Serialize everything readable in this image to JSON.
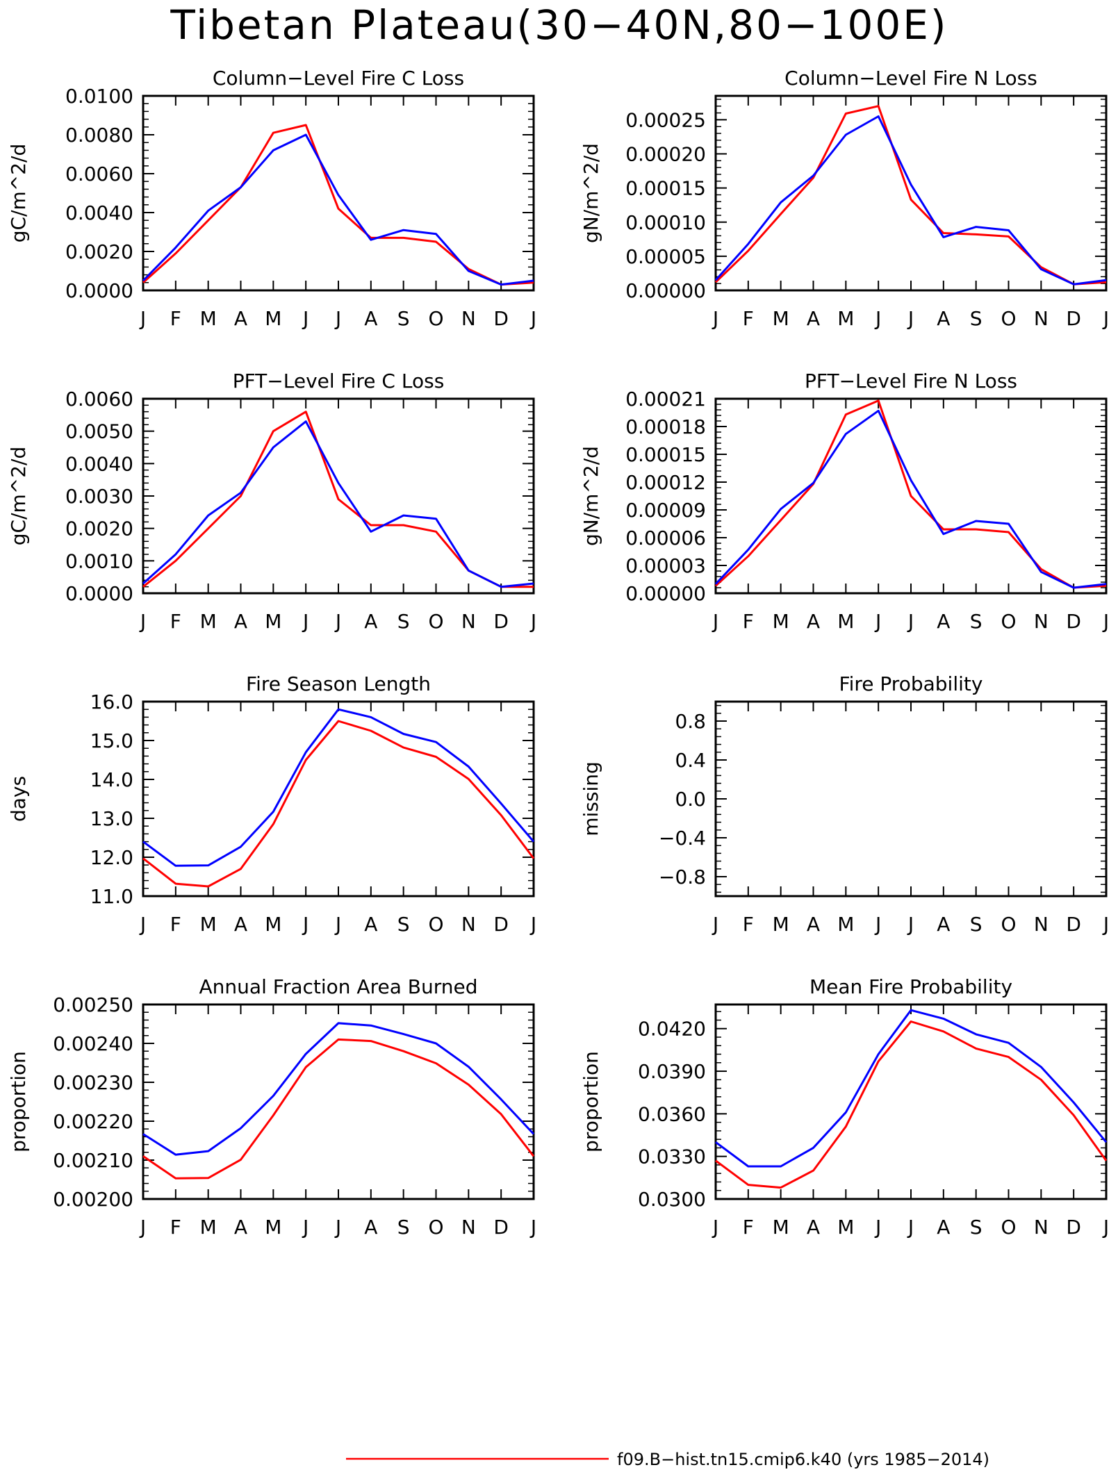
{
  "page_title": "Tibetan Plateau(30−40N,80−100E)",
  "legend": {
    "placement": "bottom-center",
    "entries": [
      {
        "label": "f09.B−hist.tn15.cmip6.k40 (yrs 1985−2014)",
        "color": "#ff0000"
      }
    ]
  },
  "colors": {
    "red_series": "#ff0000",
    "blue_series": "#0000ff"
  },
  "chart_data": [
    {
      "type": "line",
      "title": "Column−Level Fire C Loss",
      "ylabel": "gC/m^2/d",
      "x": [
        "J",
        "F",
        "M",
        "A",
        "M",
        "J",
        "J",
        "A",
        "S",
        "O",
        "N",
        "D",
        "J"
      ],
      "ylim": [
        0.0,
        0.01
      ],
      "yticks": [
        "0.0000",
        "0.0020",
        "0.0040",
        "0.0060",
        "0.0080",
        "0.0100"
      ],
      "series": [
        {
          "color": "#ff0000",
          "values": [
            0.0004,
            0.0019,
            0.0036,
            0.0053,
            0.0081,
            0.0085,
            0.0042,
            0.0027,
            0.0027,
            0.0025,
            0.0011,
            0.0003,
            0.0004
          ]
        },
        {
          "color": "#0000ff",
          "values": [
            0.0005,
            0.0022,
            0.0041,
            0.0053,
            0.0072,
            0.008,
            0.0049,
            0.0026,
            0.0031,
            0.0029,
            0.001,
            0.0003,
            0.0005
          ]
        }
      ]
    },
    {
      "type": "line",
      "title": "Column−Level Fire N Loss",
      "ylabel": "gN/m^2/d",
      "x": [
        "J",
        "F",
        "M",
        "A",
        "M",
        "J",
        "J",
        "A",
        "S",
        "O",
        "N",
        "D",
        "J"
      ],
      "ylim": [
        0.0,
        0.000285
      ],
      "yticks": [
        "0.00000",
        "0.00005",
        "0.00010",
        "0.00015",
        "0.00020",
        "0.00025"
      ],
      "series": [
        {
          "color": "#ff0000",
          "values": [
            1.2e-05,
            5.8e-05,
            0.000112,
            0.000165,
            0.000259,
            0.00027,
            0.000133,
            8.4e-05,
            8.2e-05,
            7.9e-05,
            3.4e-05,
            9e-06,
            1.2e-05
          ]
        },
        {
          "color": "#0000ff",
          "values": [
            1.5e-05,
            6.8e-05,
            0.000129,
            0.000168,
            0.000228,
            0.000255,
            0.000155,
            7.8e-05,
            9.3e-05,
            8.8e-05,
            3.1e-05,
            9e-06,
            1.5e-05
          ]
        }
      ]
    },
    {
      "type": "line",
      "title": "PFT−Level Fire C Loss",
      "ylabel": "gC/m^2/d",
      "x": [
        "J",
        "F",
        "M",
        "A",
        "M",
        "J",
        "J",
        "A",
        "S",
        "O",
        "N",
        "D",
        "J"
      ],
      "ylim": [
        0.0,
        0.006
      ],
      "yticks": [
        "0.0000",
        "0.0010",
        "0.0020",
        "0.0030",
        "0.0040",
        "0.0050",
        "0.0060"
      ],
      "series": [
        {
          "color": "#ff0000",
          "values": [
            0.0002,
            0.001,
            0.002,
            0.003,
            0.005,
            0.0056,
            0.0029,
            0.0021,
            0.0021,
            0.0019,
            0.0007,
            0.0002,
            0.0002
          ]
        },
        {
          "color": "#0000ff",
          "values": [
            0.0003,
            0.0012,
            0.0024,
            0.0031,
            0.0045,
            0.0053,
            0.0034,
            0.0019,
            0.0024,
            0.0023,
            0.0007,
            0.0002,
            0.0003
          ]
        }
      ]
    },
    {
      "type": "line",
      "title": "PFT−Level Fire N Loss",
      "ylabel": "gN/m^2/d",
      "x": [
        "J",
        "F",
        "M",
        "A",
        "M",
        "J",
        "J",
        "A",
        "S",
        "O",
        "N",
        "D",
        "J"
      ],
      "ylim": [
        0.0,
        0.00021
      ],
      "yticks": [
        "0.00000",
        "0.00003",
        "0.00006",
        "0.00009",
        "0.00012",
        "0.00015",
        "0.00018",
        "0.00021"
      ],
      "series": [
        {
          "color": "#ff0000",
          "values": [
            8e-06,
            4e-05,
            7.9e-05,
            0.000118,
            0.000193,
            0.000208,
            0.000105,
            6.9e-05,
            6.9e-05,
            6.6e-05,
            2.6e-05,
            6e-06,
            8e-06
          ]
        },
        {
          "color": "#0000ff",
          "values": [
            1e-05,
            4.7e-05,
            9.1e-05,
            0.000119,
            0.000172,
            0.000197,
            0.000122,
            6.4e-05,
            7.8e-05,
            7.5e-05,
            2.3e-05,
            6e-06,
            1e-05
          ]
        }
      ]
    },
    {
      "type": "line",
      "title": "Fire Season Length",
      "ylabel": "days",
      "x": [
        "J",
        "F",
        "M",
        "A",
        "M",
        "J",
        "J",
        "A",
        "S",
        "O",
        "N",
        "D",
        "J"
      ],
      "ylim": [
        11.0,
        16.0
      ],
      "yticks": [
        "11.0",
        "12.0",
        "13.0",
        "14.0",
        "15.0",
        "16.0"
      ],
      "series": [
        {
          "color": "#ff0000",
          "values": [
            11.97,
            11.32,
            11.25,
            11.7,
            12.85,
            14.5,
            15.5,
            15.25,
            14.82,
            14.58,
            14.01,
            13.08,
            11.97
          ]
        },
        {
          "color": "#0000ff",
          "values": [
            12.4,
            11.78,
            11.79,
            12.27,
            13.17,
            14.7,
            15.8,
            15.6,
            15.17,
            14.96,
            14.33,
            13.38,
            12.4
          ]
        }
      ]
    },
    {
      "type": "line",
      "title": "Fire Probability",
      "ylabel": "missing",
      "x": [
        "J",
        "F",
        "M",
        "A",
        "M",
        "J",
        "J",
        "A",
        "S",
        "O",
        "N",
        "D",
        "J"
      ],
      "ylim": [
        -1.0,
        1.0
      ],
      "yticks": [
        "−0.8",
        "−0.4",
        "0.0",
        "0.4",
        "0.8"
      ],
      "series": []
    },
    {
      "type": "line",
      "title": "Annual Fraction Area Burned",
      "ylabel": "proportion",
      "x": [
        "J",
        "F",
        "M",
        "A",
        "M",
        "J",
        "J",
        "A",
        "S",
        "O",
        "N",
        "D",
        "J"
      ],
      "ylim": [
        0.002,
        0.0025
      ],
      "yticks": [
        "0.00200",
        "0.00210",
        "0.00220",
        "0.00230",
        "0.00240",
        "0.00250"
      ],
      "series": [
        {
          "color": "#ff0000",
          "values": [
            0.00211,
            0.002053,
            0.002054,
            0.002101,
            0.002215,
            0.002339,
            0.00241,
            0.002406,
            0.00238,
            0.002349,
            0.002294,
            0.002218,
            0.00211
          ]
        },
        {
          "color": "#0000ff",
          "values": [
            0.002167,
            0.002114,
            0.002123,
            0.002182,
            0.002265,
            0.002373,
            0.002452,
            0.002446,
            0.002424,
            0.0024,
            0.00234,
            0.002256,
            0.002167
          ]
        }
      ]
    },
    {
      "type": "line",
      "title": "Mean Fire Probability",
      "ylabel": "proportion",
      "x": [
        "J",
        "F",
        "M",
        "A",
        "M",
        "J",
        "J",
        "A",
        "S",
        "O",
        "N",
        "D",
        "J"
      ],
      "ylim": [
        0.03,
        0.0437
      ],
      "yticks": [
        "0.0300",
        "0.0330",
        "0.0360",
        "0.0390",
        "0.0420"
      ],
      "series": [
        {
          "color": "#ff0000",
          "values": [
            0.0327,
            0.031,
            0.0308,
            0.032,
            0.0351,
            0.0397,
            0.0425,
            0.0418,
            0.0406,
            0.04,
            0.0384,
            0.0359,
            0.0327
          ]
        },
        {
          "color": "#0000ff",
          "values": [
            0.034,
            0.0323,
            0.0323,
            0.0336,
            0.0361,
            0.0402,
            0.0433,
            0.0427,
            0.0416,
            0.041,
            0.0393,
            0.0368,
            0.034
          ]
        }
      ]
    }
  ]
}
